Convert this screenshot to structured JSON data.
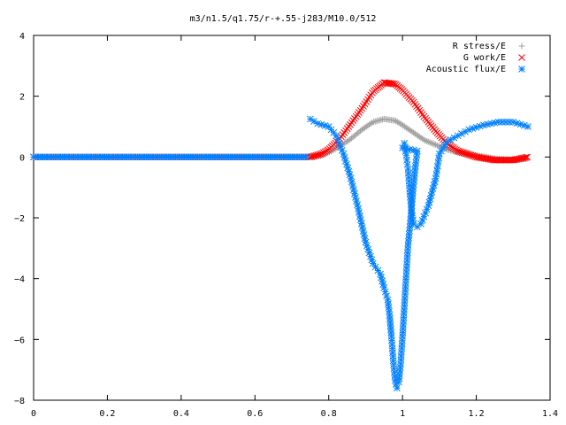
{
  "chart_data": {
    "type": "scatter",
    "title": "m3/n1.5/q1.75/r-+.55-j283/M10.0/512",
    "xlabel": "",
    "ylabel": "",
    "xlim": [
      0,
      1.4
    ],
    "ylim": [
      -8,
      4
    ],
    "x_ticks": [
      "0",
      "0.2",
      "0.4",
      "0.6",
      "0.8",
      "1",
      "1.2",
      "1.4"
    ],
    "y_ticks": [
      "4",
      "2",
      "0",
      "−2",
      "−4",
      "−6",
      "−8"
    ],
    "grid": false,
    "legend_position": "top-right",
    "series": [
      {
        "name": "R stress/E",
        "marker": "+",
        "color": "#a0a0a0",
        "points": [
          [
            0.75,
            0.0
          ],
          [
            0.78,
            0.05
          ],
          [
            0.8,
            0.15
          ],
          [
            0.83,
            0.35
          ],
          [
            0.86,
            0.6
          ],
          [
            0.89,
            0.9
          ],
          [
            0.92,
            1.15
          ],
          [
            0.95,
            1.25
          ],
          [
            0.98,
            1.2
          ],
          [
            1.0,
            1.05
          ],
          [
            1.03,
            0.8
          ],
          [
            1.06,
            0.55
          ],
          [
            1.09,
            0.4
          ],
          [
            1.12,
            0.25
          ],
          [
            1.15,
            0.15
          ],
          [
            1.2,
            0.05
          ],
          [
            1.25,
            -0.05
          ],
          [
            1.3,
            -0.1
          ],
          [
            1.34,
            -0.05
          ]
        ]
      },
      {
        "name": "G work/E",
        "marker": "x",
        "color": "#ff0000",
        "points": [
          [
            0.75,
            0.0
          ],
          [
            0.78,
            0.1
          ],
          [
            0.8,
            0.25
          ],
          [
            0.83,
            0.6
          ],
          [
            0.86,
            1.1
          ],
          [
            0.89,
            1.6
          ],
          [
            0.92,
            2.15
          ],
          [
            0.95,
            2.45
          ],
          [
            0.98,
            2.4
          ],
          [
            1.0,
            2.2
          ],
          [
            1.03,
            1.8
          ],
          [
            1.06,
            1.3
          ],
          [
            1.09,
            0.85
          ],
          [
            1.12,
            0.45
          ],
          [
            1.15,
            0.2
          ],
          [
            1.2,
            0.0
          ],
          [
            1.25,
            -0.1
          ],
          [
            1.3,
            -0.1
          ],
          [
            1.34,
            0.0
          ]
        ]
      },
      {
        "name": "Acoustic flux/E",
        "marker": "*",
        "color": "#0080ff",
        "points": [
          [
            0.75,
            1.25
          ],
          [
            0.77,
            1.1
          ],
          [
            0.8,
            1.0
          ],
          [
            0.82,
            0.7
          ],
          [
            0.84,
            0.1
          ],
          [
            0.86,
            -0.7
          ],
          [
            0.88,
            -1.7
          ],
          [
            0.9,
            -2.8
          ],
          [
            0.92,
            -3.5
          ],
          [
            0.94,
            -3.85
          ],
          [
            0.95,
            -4.3
          ],
          [
            0.96,
            -4.7
          ],
          [
            0.965,
            -5.2
          ],
          [
            0.97,
            -5.9
          ],
          [
            0.975,
            -6.7
          ],
          [
            0.98,
            -7.35
          ],
          [
            0.985,
            -7.6
          ],
          [
            0.99,
            -7.4
          ],
          [
            0.995,
            -6.8
          ],
          [
            1.0,
            -5.9
          ],
          [
            1.005,
            -4.9
          ],
          [
            1.01,
            -3.9
          ],
          [
            1.015,
            -2.9
          ],
          [
            1.02,
            -2.3
          ],
          [
            1.025,
            -1.6
          ],
          [
            1.03,
            -0.9
          ],
          [
            1.035,
            -0.3
          ],
          [
            1.04,
            0.2
          ],
          [
            1.0,
            0.3
          ],
          [
            1.005,
            0.45
          ],
          [
            1.01,
            0.05
          ],
          [
            1.015,
            -0.4
          ],
          [
            1.02,
            -1.2
          ],
          [
            1.025,
            -1.8
          ],
          [
            1.03,
            -2.2
          ],
          [
            1.04,
            -2.3
          ],
          [
            1.05,
            -2.2
          ],
          [
            1.07,
            -1.6
          ],
          [
            1.09,
            -0.7
          ],
          [
            1.1,
            0.1
          ],
          [
            1.12,
            0.5
          ],
          [
            1.15,
            0.7
          ],
          [
            1.18,
            0.9
          ],
          [
            1.22,
            1.05
          ],
          [
            1.26,
            1.15
          ],
          [
            1.3,
            1.15
          ],
          [
            1.34,
            1.0
          ]
        ]
      }
    ]
  }
}
